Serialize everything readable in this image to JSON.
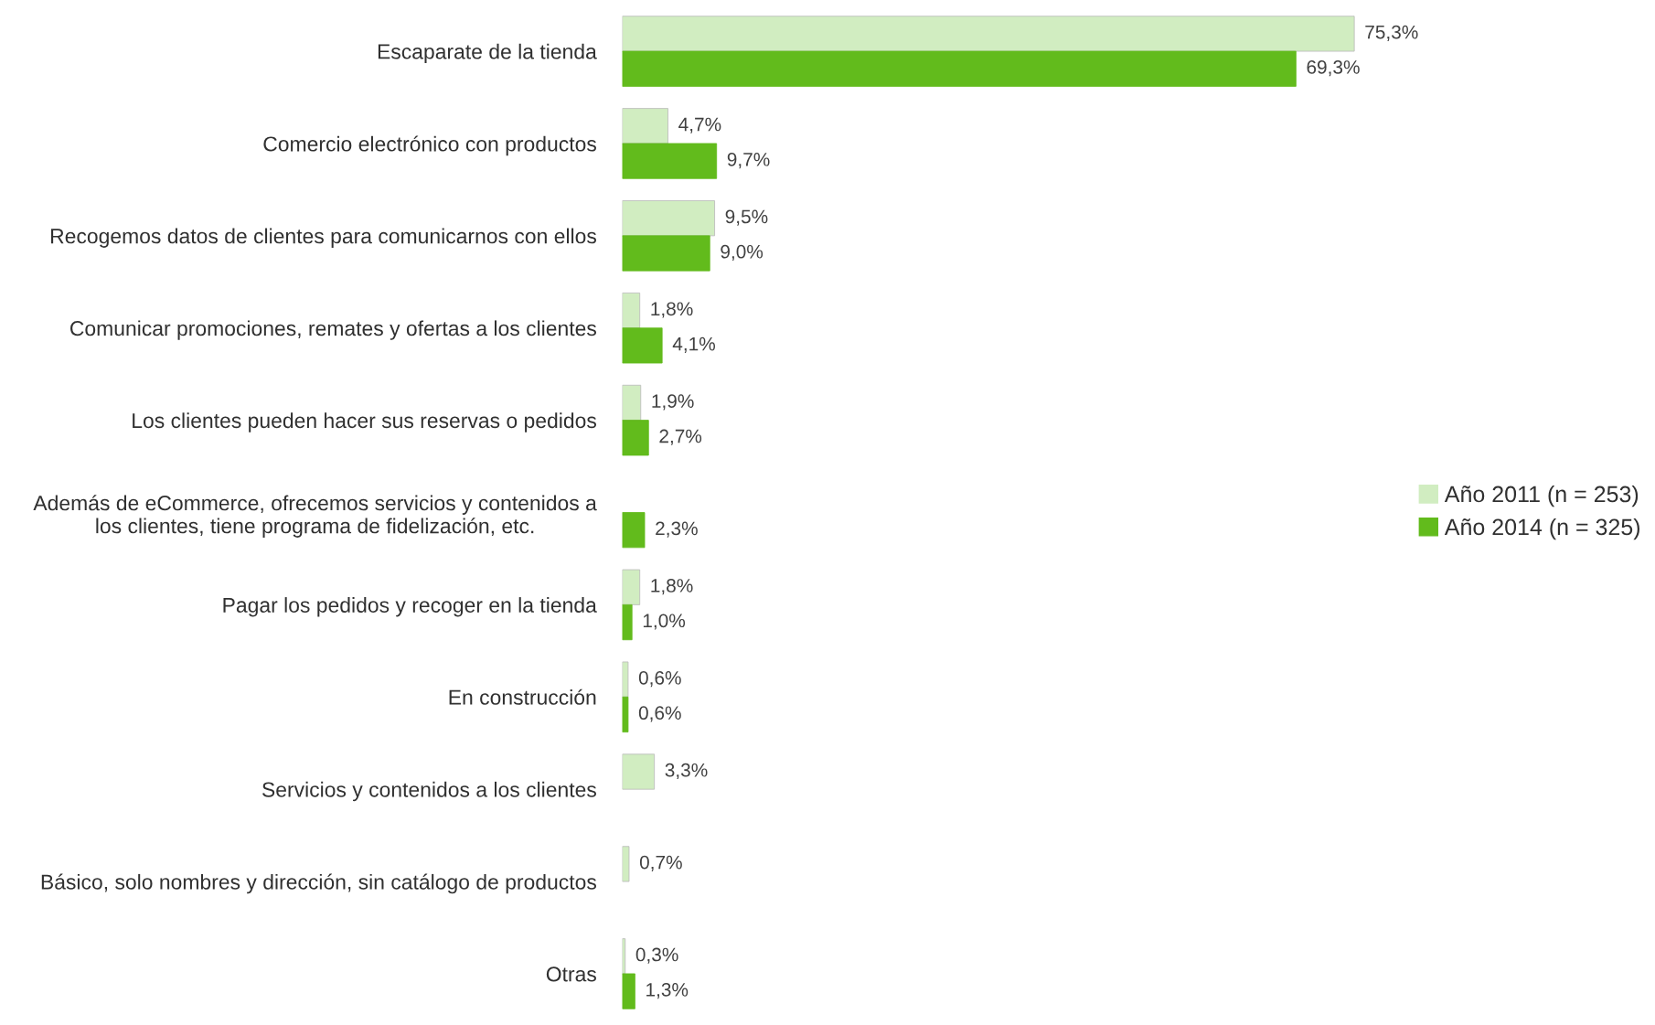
{
  "chart_data": {
    "type": "bar",
    "orientation": "horizontal",
    "tick_labels": "y",
    "legend": "right",
    "grid": false,
    "categories": [
      "Escaparate de la tienda",
      "Comercio electrónico con productos",
      "Recogemos datos de clientes para comunicarnos con ellos",
      "Comunicar promociones, remates y ofertas a los clientes",
      "Los clientes pueden hacer sus reservas o pedidos",
      "Además de eCommerce, ofrecemos servicios y contenidos a\nlos clientes, tiene programa de fidelización, etc.",
      "Pagar los pedidos y recoger en la tienda",
      "En construcción",
      "Servicios y contenidos a los clientes",
      "Básico, solo nombres y dirección, sin catálogo de productos",
      "Otras"
    ],
    "series": [
      {
        "name": "Año 2011 (n = 253)",
        "color": "#d1edc1",
        "values": [
          75.3,
          4.7,
          9.5,
          1.8,
          1.9,
          null,
          1.8,
          0.6,
          3.3,
          0.7,
          0.3
        ],
        "value_labels": [
          "75,3%",
          "4,7%",
          "9,5%",
          "1,8%",
          "1,9%",
          null,
          "1,8%",
          "0,6%",
          "3,3%",
          "0,7%",
          "0,3%"
        ]
      },
      {
        "name": "Año 2014 (n = 325)",
        "color": "#62bb1c",
        "values": [
          69.3,
          9.7,
          9.0,
          4.1,
          2.7,
          2.3,
          1.0,
          0.6,
          null,
          null,
          1.3
        ],
        "value_labels": [
          "69,3%",
          "9,7%",
          "9,0%",
          "4,1%",
          "2,7%",
          "2,3%",
          "1,0%",
          "0,6%",
          null,
          null,
          "1,3%"
        ]
      }
    ]
  }
}
